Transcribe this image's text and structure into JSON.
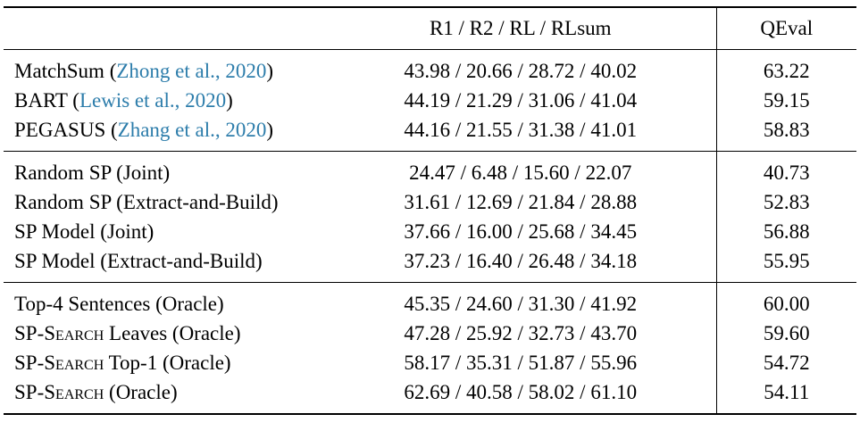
{
  "citation_color": "#2d7dab",
  "header": {
    "scores_label": "R1 / R2 / RL / RLsum",
    "qeval_label": "QEval"
  },
  "groups": [
    {
      "rows": [
        {
          "parts": [
            {
              "t": "MatchSum ("
            },
            {
              "t": "Zhong et al., 2020",
              "cite": true
            },
            {
              "t": ")"
            }
          ],
          "scores": "43.98 / 20.66 / 28.72 / 40.02",
          "qeval": "63.22"
        },
        {
          "parts": [
            {
              "t": "BART ("
            },
            {
              "t": "Lewis et al., 2020",
              "cite": true
            },
            {
              "t": ")"
            }
          ],
          "scores": "44.19 / 21.29 / 31.06 / 41.04",
          "qeval": "59.15"
        },
        {
          "parts": [
            {
              "t": "PEGASUS ("
            },
            {
              "t": "Zhang et al., 2020",
              "cite": true
            },
            {
              "t": ")"
            }
          ],
          "scores": "44.16 / 21.55 / 31.38 / 41.01",
          "qeval": "58.83"
        }
      ]
    },
    {
      "rows": [
        {
          "parts": [
            {
              "t": "Random SP (Joint)"
            }
          ],
          "scores": "24.47 / 6.48 / 15.60 / 22.07",
          "qeval": "40.73"
        },
        {
          "parts": [
            {
              "t": "Random SP (Extract-and-Build)"
            }
          ],
          "scores": "31.61 / 12.69 / 21.84 / 28.88",
          "qeval": "52.83"
        },
        {
          "parts": [
            {
              "t": "SP Model (Joint)"
            }
          ],
          "scores": "37.66 / 16.00 / 25.68 / 34.45",
          "qeval": "56.88"
        },
        {
          "parts": [
            {
              "t": "SP Model (Extract-and-Build)"
            }
          ],
          "scores": "37.23 / 16.40 / 26.48 / 34.18",
          "qeval": "55.95"
        }
      ]
    },
    {
      "rows": [
        {
          "parts": [
            {
              "t": "Top-4 Sentences (Oracle)"
            }
          ],
          "scores": "45.35 / 24.60 / 31.30 / 41.92",
          "qeval": "60.00"
        },
        {
          "parts": [
            {
              "t": "SP-"
            },
            {
              "t": "Search",
              "sc": true
            },
            {
              "t": " Leaves (Oracle)"
            }
          ],
          "scores": "47.28 / 25.92 / 32.73 / 43.70",
          "qeval": "59.60"
        },
        {
          "parts": [
            {
              "t": "SP-"
            },
            {
              "t": "Search",
              "sc": true
            },
            {
              "t": " Top-1 (Oracle)"
            }
          ],
          "scores": "58.17 / 35.31 / 51.87 / 55.96",
          "qeval": "54.72"
        },
        {
          "parts": [
            {
              "t": "SP-"
            },
            {
              "t": "Search",
              "sc": true
            },
            {
              "t": " (Oracle)"
            }
          ],
          "scores": "62.69 / 40.58 / 58.02 / 61.10",
          "qeval": "54.11"
        }
      ]
    }
  ]
}
